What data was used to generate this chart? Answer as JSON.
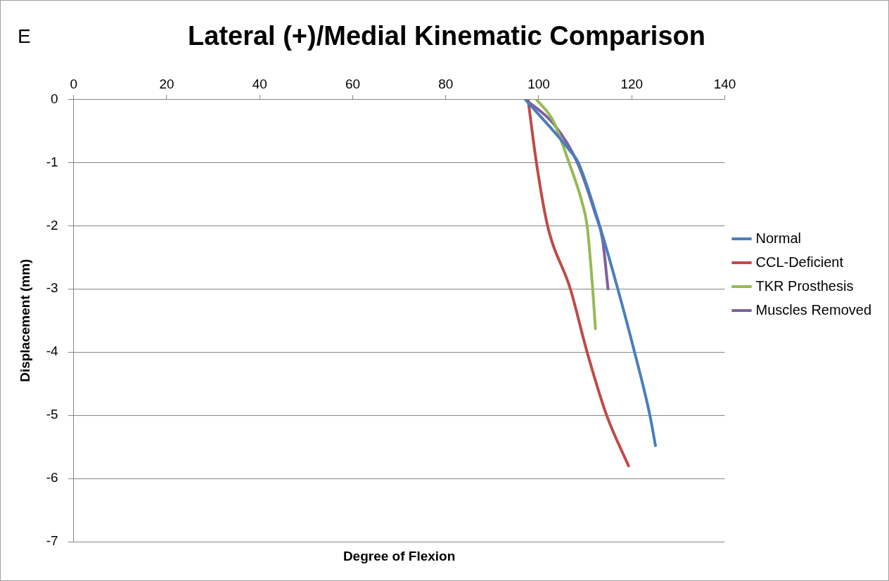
{
  "chart_data": {
    "type": "line",
    "title": "Lateral (+)/Medial Kinematic Comparison",
    "xlabel": "Degree of Flexion",
    "ylabel": "Displacement (mm)",
    "annotations": [
      "E"
    ],
    "xlim": [
      0,
      140
    ],
    "xticks": [
      0,
      20,
      40,
      60,
      80,
      100,
      120,
      140
    ],
    "ylim": [
      -7,
      0
    ],
    "yticks": [
      -7,
      -6,
      -5,
      -4,
      -3,
      -2,
      -1,
      0
    ],
    "grid": "y",
    "legend": "right",
    "marker": "none",
    "line_style": "solid",
    "series": [
      {
        "name": "Normal",
        "color": "#4a7ebb",
        "x": [
          97.1,
          106.8,
          108.5,
          113.1,
          117.0,
          120.6,
          123.9,
          125.1
        ],
        "values": [
          0,
          -0.82,
          -1.0,
          -2.0,
          -3.0,
          -4.0,
          -5.0,
          -5.48
        ]
      },
      {
        "name": "CCL-Deficient",
        "color": "#be4b48",
        "x": [
          97.7,
          99.5,
          101.9,
          106.8,
          110.4,
          114.6,
          119.3
        ],
        "values": [
          0,
          -1.0,
          -2.0,
          -3.0,
          -4.0,
          -5.0,
          -5.8
        ]
      },
      {
        "name": "TKR Prosthesis",
        "color": "#98b954",
        "x": [
          99.5,
          103.1,
          106.5,
          109.2,
          110.4,
          111.6,
          112.2
        ],
        "values": [
          0,
          -0.34,
          -1.0,
          -1.6,
          -2.0,
          -3.0,
          -3.63
        ]
      },
      {
        "name": "Muscles Removed",
        "color": "#7d60a0",
        "x": [
          97.1,
          103.1,
          108.3,
          112.2,
          113.7,
          114.9
        ],
        "values": [
          0,
          -0.38,
          -1.0,
          -1.82,
          -2.21,
          -3.0
        ]
      }
    ]
  }
}
